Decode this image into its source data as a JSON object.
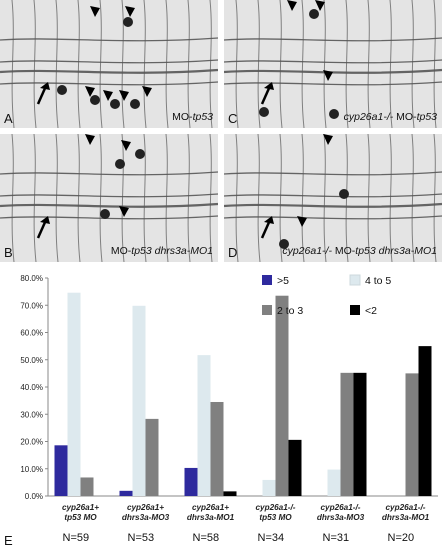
{
  "panels": [
    {
      "letter": "A",
      "caption_pre": "MO-",
      "caption_it": "tp53",
      "caption_post": "",
      "caption_it2": ""
    },
    {
      "letter": "B",
      "caption_pre": "MO-",
      "caption_it": "tp53 dhrs3a-MO1",
      "caption_post": "",
      "caption_it2": ""
    },
    {
      "letter": "C",
      "caption_pre": "",
      "caption_it": "cyp26a1-/-",
      "caption_post": " MO-",
      "caption_it2": "tp53"
    },
    {
      "letter": "D",
      "caption_pre": "",
      "caption_it": "cyp26a1-/-",
      "caption_post": " MO-",
      "caption_it2": "tp53 dhrs3a-MO1"
    }
  ],
  "panel_e_letter": "E",
  "chart_data": {
    "type": "bar",
    "categories": [
      [
        "cyp26a1+",
        "tp53 MO"
      ],
      [
        "cyp26a1+",
        "dhrs3a-MO3"
      ],
      [
        "cyp26a1+",
        "dhrs3a-MO1"
      ],
      [
        "cyp26a1-/-",
        "tp53 MO"
      ],
      [
        "cyp26a1-/-",
        "dhrs3a-MO3"
      ],
      [
        "cyp26a1-/-",
        "dhrs3a-MO1"
      ]
    ],
    "n_labels": [
      "N=59",
      "N=53",
      "N=58",
      "N=34",
      "N=31",
      "N=20"
    ],
    "series": [
      {
        "name": ">5",
        "color": "#2e2a9e",
        "values": [
          18.6,
          1.9,
          10.3,
          0,
          0,
          0
        ]
      },
      {
        "name": "4 to 5",
        "color": "#dde9ee",
        "values": [
          74.6,
          69.8,
          51.7,
          5.9,
          9.7,
          0
        ]
      },
      {
        "name": "2 to 3",
        "color": "#808080",
        "values": [
          6.8,
          28.3,
          34.5,
          73.5,
          45.2,
          45.0
        ]
      },
      {
        "name": "<2",
        "color": "#000000",
        "values": [
          0,
          0,
          1.7,
          20.6,
          45.2,
          55.0
        ]
      }
    ],
    "yticks": [
      "0.0%",
      "10.0%",
      "20.0%",
      "30.0%",
      "40.0%",
      "50.0%",
      "60.0%",
      "70.0%",
      "80.0%"
    ],
    "ylim": [
      0,
      80
    ],
    "legend_position": "top-right"
  }
}
